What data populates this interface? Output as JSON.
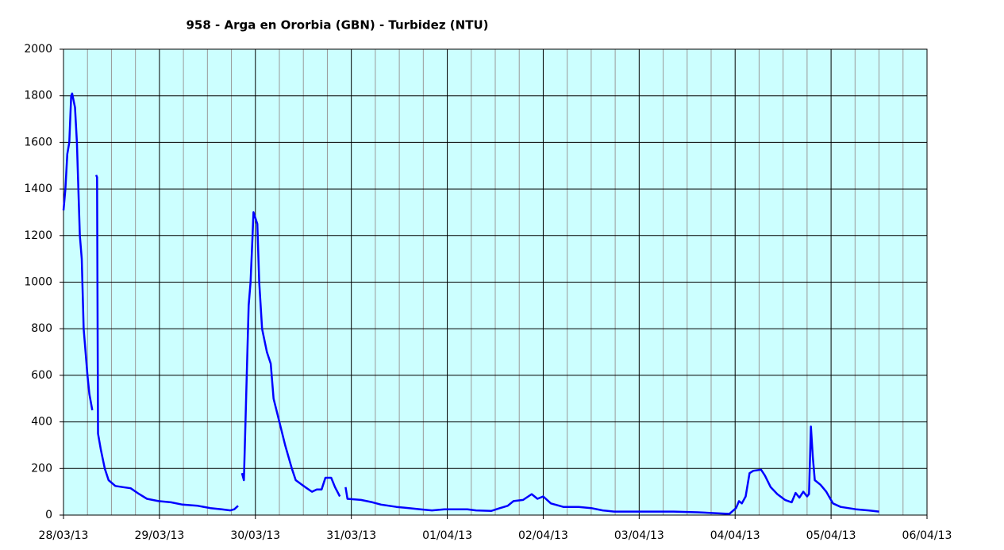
{
  "chart_data": {
    "type": "line",
    "title": "958 - Arga en Ororbia (GBN) - Turbidez (NTU)",
    "xlim": [
      0,
      9
    ],
    "xticks": [
      {
        "value": 0,
        "label": "28/03/13"
      },
      {
        "value": 1,
        "label": "29/03/13"
      },
      {
        "value": 2,
        "label": "30/03/13"
      },
      {
        "value": 3,
        "label": "31/03/13"
      },
      {
        "value": 4,
        "label": "01/04/13"
      },
      {
        "value": 5,
        "label": "02/04/13"
      },
      {
        "value": 6,
        "label": "03/04/13"
      },
      {
        "value": 7,
        "label": "04/04/13"
      },
      {
        "value": 8,
        "label": "05/04/13"
      },
      {
        "value": 9,
        "label": "06/04/13"
      }
    ],
    "ylim": [
      0,
      2000
    ],
    "yticks": [
      0,
      200,
      400,
      600,
      800,
      1000,
      1200,
      1400,
      1600,
      1800,
      2000
    ],
    "grid": true,
    "background": "#ccffff",
    "series": [
      {
        "color": "#0000ff",
        "x": [
          0.0,
          0.02,
          0.04,
          0.06,
          0.08,
          0.09,
          0.12,
          0.14,
          0.17,
          0.19,
          0.21,
          0.25,
          0.27,
          0.3,
          null,
          0.34,
          0.35,
          0.36,
          0.39,
          0.43,
          0.47,
          0.54,
          0.62,
          0.7,
          0.79,
          0.87,
          0.99,
          1.12,
          1.24,
          1.4,
          1.53,
          1.65,
          1.74,
          1.78,
          1.82,
          null,
          1.86,
          1.88,
          1.91,
          1.93,
          1.95,
          1.97,
          1.98,
          2.02,
          2.04,
          2.07,
          2.12,
          2.16,
          2.19,
          2.25,
          2.31,
          2.38,
          2.42,
          2.52,
          2.59,
          2.64,
          2.69,
          2.73,
          2.79,
          2.83,
          2.88,
          null,
          2.94,
          2.96,
          3.1,
          3.22,
          3.31,
          3.47,
          3.72,
          3.84,
          3.97,
          4.21,
          4.3,
          4.46,
          4.55,
          4.63,
          4.69,
          4.79,
          4.88,
          4.94,
          5.0,
          5.08,
          5.21,
          5.37,
          5.5,
          5.62,
          5.74,
          5.95,
          6.36,
          6.61,
          6.94,
          7.01,
          7.04,
          7.07,
          7.11,
          7.15,
          7.19,
          7.27,
          7.31,
          7.37,
          7.44,
          7.52,
          7.59,
          7.63,
          7.67,
          7.71,
          7.75,
          7.77,
          7.79,
          7.81,
          7.83,
          7.89,
          7.95,
          8.02,
          8.1,
          8.26,
          8.39,
          8.5
        ],
        "values": [
          1308,
          1400,
          1550,
          1600,
          1800,
          1810,
          1750,
          1600,
          1200,
          1100,
          800,
          600,
          520,
          450,
          null,
          1460,
          1450,
          350,
          280,
          200,
          150,
          125,
          120,
          115,
          90,
          70,
          60,
          55,
          45,
          40,
          30,
          25,
          20,
          25,
          40,
          null,
          180,
          150,
          600,
          900,
          1000,
          1200,
          1300,
          1250,
          1000,
          800,
          700,
          650,
          500,
          400,
          300,
          200,
          150,
          120,
          100,
          110,
          110,
          160,
          160,
          120,
          80,
          null,
          120,
          70,
          65,
          55,
          45,
          35,
          25,
          20,
          25,
          25,
          20,
          18,
          30,
          40,
          60,
          65,
          90,
          70,
          80,
          50,
          35,
          35,
          30,
          20,
          15,
          15,
          15,
          12,
          5,
          30,
          60,
          50,
          80,
          180,
          190,
          195,
          170,
          120,
          90,
          65,
          55,
          95,
          75,
          100,
          80,
          90,
          380,
          250,
          150,
          130,
          100,
          50,
          35,
          25,
          20,
          15
        ]
      }
    ]
  }
}
